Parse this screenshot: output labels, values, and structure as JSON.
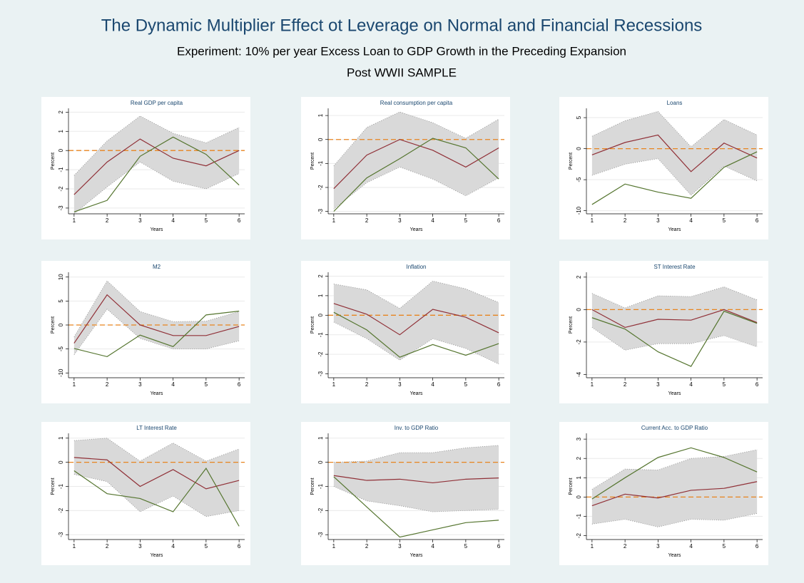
{
  "header": {
    "title": "The Dynamic Multiplier Effect ot Leverage on Normal and Financial Recessions",
    "subtitle": "Experiment: 10% per year Excess Loan to GDP Growth in the Preceding Expansion",
    "sample": "Post WWII SAMPLE"
  },
  "chart_data": [
    {
      "type": "line",
      "title": "Real GDP per capita",
      "x_label": "Years",
      "y_label": "Percent",
      "x": [
        1,
        2,
        3,
        4,
        5,
        6
      ],
      "xlim": [
        0.83,
        6.17
      ],
      "xticks": [
        1,
        2,
        3,
        4,
        5,
        6
      ],
      "ylim": [
        -3.3,
        2.2
      ],
      "yticks": [
        -3,
        -2,
        -1,
        0,
        1,
        2
      ],
      "grid": true,
      "hline": 0,
      "hline_color": "#e8841f",
      "band": {
        "color": "#d9d9d9",
        "upper": [
          -1.3,
          0.5,
          1.8,
          0.9,
          0.4,
          1.2
        ],
        "lower": [
          -3.3,
          -1.9,
          -0.6,
          -1.6,
          -2.0,
          -1.2
        ]
      },
      "series": [
        {
          "color": "#903037",
          "values": [
            -2.3,
            -0.6,
            0.6,
            -0.4,
            -0.8,
            0.0
          ]
        },
        {
          "color": "#55752f",
          "values": [
            -3.2,
            -2.6,
            -0.3,
            0.7,
            -0.2,
            -1.8
          ]
        }
      ]
    },
    {
      "type": "line",
      "title": "Real consumption per capita",
      "x_label": "Years",
      "y_label": "Percent",
      "x": [
        1,
        2,
        3,
        4,
        5,
        6
      ],
      "xlim": [
        0.83,
        6.17
      ],
      "xticks": [
        1,
        2,
        3,
        4,
        5,
        6
      ],
      "ylim": [
        -3.1,
        1.3
      ],
      "yticks": [
        -3,
        -2,
        -1,
        0,
        1
      ],
      "grid": true,
      "hline": 0,
      "hline_color": "#e8841f",
      "band": {
        "color": "#d9d9d9",
        "upper": [
          -1.1,
          0.5,
          1.15,
          0.7,
          0.05,
          0.85
        ],
        "lower": [
          -2.9,
          -1.8,
          -1.15,
          -1.65,
          -2.35,
          -1.6
        ]
      },
      "series": [
        {
          "color": "#903037",
          "values": [
            -2.05,
            -0.65,
            0,
            -0.45,
            -1.15,
            -0.35
          ]
        },
        {
          "color": "#55752f",
          "values": [
            -3,
            -1.6,
            -0.8,
            0.05,
            -0.35,
            -1.65
          ]
        }
      ]
    },
    {
      "type": "line",
      "title": "Loans",
      "x_label": "Years",
      "y_label": "Percent",
      "x": [
        1,
        2,
        3,
        4,
        5,
        6
      ],
      "xlim": [
        0.83,
        6.17
      ],
      "xticks": [
        1,
        2,
        3,
        4,
        5,
        6
      ],
      "ylim": [
        -10.5,
        6.5
      ],
      "yticks": [
        -10,
        -5,
        0,
        5
      ],
      "grid": true,
      "hline": 0,
      "hline_color": "#e8841f",
      "band": {
        "color": "#d9d9d9",
        "upper": [
          2,
          4.5,
          6,
          0.3,
          4.7,
          2.2
        ],
        "lower": [
          -4.3,
          -2.5,
          -1.6,
          -7.5,
          -2.8,
          -5.2
        ]
      },
      "series": [
        {
          "color": "#903037",
          "values": [
            -1,
            1,
            2.2,
            -3.7,
            0.9,
            -1.5
          ]
        },
        {
          "color": "#55752f",
          "values": [
            -9,
            -5.7,
            -7,
            -8,
            -3,
            -0.5
          ]
        }
      ]
    },
    {
      "type": "line",
      "title": "M2",
      "x_label": "Years",
      "y_label": "Percent",
      "x": [
        1,
        2,
        3,
        4,
        5,
        6
      ],
      "xlim": [
        0.83,
        6.17
      ],
      "xticks": [
        1,
        2,
        3,
        4,
        5,
        6
      ],
      "ylim": [
        -11,
        11
      ],
      "yticks": [
        -10,
        -5,
        0,
        5,
        10
      ],
      "grid": true,
      "hline": 0,
      "hline_color": "#e8841f",
      "band": {
        "color": "#d9d9d9",
        "upper": [
          -2.5,
          9.2,
          2.8,
          0.7,
          0.8,
          2.8
        ],
        "lower": [
          -6.2,
          3.3,
          -2.8,
          -5,
          -5,
          -3.3
        ]
      },
      "series": [
        {
          "color": "#903037",
          "values": [
            -3.8,
            6.3,
            0,
            -2.2,
            -2.2,
            -0.3
          ]
        },
        {
          "color": "#55752f",
          "values": [
            -4.9,
            -6.6,
            -2.1,
            -4.5,
            2.1,
            2.9
          ]
        }
      ]
    },
    {
      "type": "line",
      "title": "Inflation",
      "x_label": "Years",
      "y_label": "Percent",
      "x": [
        1,
        2,
        3,
        4,
        5,
        6
      ],
      "xlim": [
        0.83,
        6.17
      ],
      "xticks": [
        1,
        2,
        3,
        4,
        5,
        6
      ],
      "ylim": [
        -3.2,
        2.2
      ],
      "yticks": [
        -3,
        -2,
        -1,
        0,
        1,
        2
      ],
      "grid": true,
      "hline": 0,
      "hline_color": "#e8841f",
      "band": {
        "color": "#d9d9d9",
        "upper": [
          1.6,
          1.3,
          0.35,
          1.75,
          1.35,
          0.65
        ],
        "lower": [
          -0.35,
          -1.2,
          -2.3,
          -1.2,
          -1.7,
          -2.5
        ]
      },
      "series": [
        {
          "color": "#903037",
          "values": [
            0.6,
            0.05,
            -1,
            0.3,
            -0.1,
            -0.9
          ]
        },
        {
          "color": "#55752f",
          "values": [
            0.15,
            -0.75,
            -2.15,
            -1.5,
            -2.05,
            -1.45
          ]
        }
      ]
    },
    {
      "type": "line",
      "title": "ST Interest Rate",
      "x_label": "Years",
      "y_label": "Percent",
      "x": [
        1,
        2,
        3,
        4,
        5,
        6
      ],
      "xlim": [
        0.83,
        6.17
      ],
      "xticks": [
        1,
        2,
        3,
        4,
        5,
        6
      ],
      "ylim": [
        -4.2,
        2.3
      ],
      "yticks": [
        -4,
        -2,
        0,
        2
      ],
      "grid": true,
      "hline": 0,
      "hline_color": "#e8841f",
      "band": {
        "color": "#d9d9d9",
        "upper": [
          1,
          0.1,
          0.85,
          0.8,
          1.4,
          0.6
        ],
        "lower": [
          -1.1,
          -2.5,
          -2.1,
          -2.1,
          -1.6,
          -2.3
        ]
      },
      "series": [
        {
          "color": "#903037",
          "values": [
            0,
            -1.1,
            -0.6,
            -0.65,
            0,
            -0.8
          ]
        },
        {
          "color": "#55752f",
          "values": [
            -0.5,
            -1.2,
            -2.6,
            -3.5,
            -0.1,
            -0.85
          ]
        }
      ]
    },
    {
      "type": "line",
      "title": "LT Interest Rate",
      "x_label": "Years",
      "y_label": "Percent",
      "x": [
        1,
        2,
        3,
        4,
        5,
        6
      ],
      "xlim": [
        0.83,
        6.17
      ],
      "xticks": [
        1,
        2,
        3,
        4,
        5,
        6
      ],
      "ylim": [
        -3.2,
        1.2
      ],
      "yticks": [
        -3,
        -2,
        -1,
        0,
        1
      ],
      "grid": true,
      "hline": 0,
      "hline_color": "#e8841f",
      "band": {
        "color": "#d9d9d9",
        "upper": [
          0.9,
          1.0,
          0.05,
          0.8,
          0.05,
          0.55
        ],
        "lower": [
          -0.5,
          -0.8,
          -2.05,
          -1.4,
          -2.25,
          -2.0
        ]
      },
      "series": [
        {
          "color": "#903037",
          "values": [
            0.2,
            0.1,
            -1,
            -0.3,
            -1.1,
            -0.75
          ]
        },
        {
          "color": "#55752f",
          "values": [
            -0.35,
            -1.3,
            -1.5,
            -2.05,
            -0.25,
            -2.65
          ]
        }
      ]
    },
    {
      "type": "line",
      "title": "Inv. to GDP Ratio",
      "x_label": "Years",
      "y_label": "Percent",
      "x": [
        1,
        2,
        3,
        4,
        5,
        6
      ],
      "xlim": [
        0.83,
        6.17
      ],
      "xticks": [
        1,
        2,
        3,
        4,
        5,
        6
      ],
      "ylim": [
        -3.2,
        1.2
      ],
      "yticks": [
        -3,
        -2,
        -1,
        0,
        1
      ],
      "grid": true,
      "hline": 0,
      "hline_color": "#e8841f",
      "band": {
        "color": "#d9d9d9",
        "upper": [
          0,
          0.05,
          0.4,
          0.4,
          0.6,
          0.7
        ],
        "lower": [
          -1.0,
          -1.6,
          -1.8,
          -2.05,
          -2.0,
          -1.95
        ]
      },
      "series": [
        {
          "color": "#903037",
          "values": [
            -0.55,
            -0.75,
            -0.7,
            -0.85,
            -0.7,
            -0.65
          ]
        },
        {
          "color": "#55752f",
          "values": [
            -0.6,
            -1.85,
            -3.1,
            -2.8,
            -2.5,
            -2.4
          ]
        }
      ]
    },
    {
      "type": "line",
      "title": "Current Acc. to GDP Ratio",
      "x_label": "Years",
      "y_label": "Percent",
      "x": [
        1,
        2,
        3,
        4,
        5,
        6
      ],
      "xlim": [
        0.83,
        6.17
      ],
      "xticks": [
        1,
        2,
        3,
        4,
        5,
        6
      ],
      "ylim": [
        -2.2,
        3.3
      ],
      "yticks": [
        -2,
        -1,
        0,
        1,
        2,
        3
      ],
      "grid": true,
      "hline": 0,
      "hline_color": "#e8841f",
      "band": {
        "color": "#d9d9d9",
        "upper": [
          0.4,
          1.45,
          1.4,
          2,
          2.1,
          2.45
        ],
        "lower": [
          -1.4,
          -1.15,
          -1.55,
          -1.15,
          -1.2,
          -0.85
        ]
      },
      "series": [
        {
          "color": "#903037",
          "values": [
            -0.45,
            0.15,
            -0.05,
            0.35,
            0.45,
            0.8
          ]
        },
        {
          "color": "#55752f",
          "values": [
            -0.1,
            1.0,
            2.05,
            2.55,
            2.05,
            1.3
          ]
        }
      ]
    }
  ]
}
